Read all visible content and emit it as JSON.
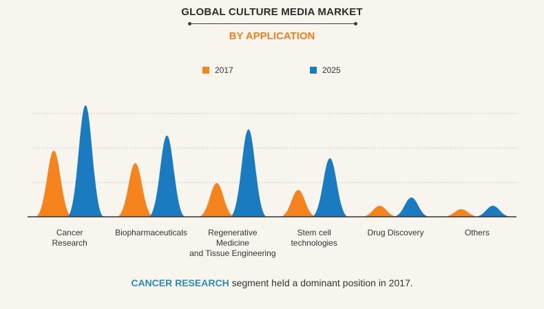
{
  "header": {
    "title": "GLOBAL CULTURE MEDIA MARKET",
    "subtitle": "BY APPLICATION"
  },
  "footer": {
    "highlight": "CANCER RESEARCH",
    "text": " segment held a dominant position in 2017."
  },
  "colors": {
    "s2017": "#f5841f",
    "s2025": "#1a7bc0",
    "grid": "#c9c9c9",
    "axis": "#333333"
  },
  "chart_data": {
    "type": "area",
    "categories": [
      [
        "Cancer",
        "Research"
      ],
      [
        "Biopharmaceuticals"
      ],
      [
        "Regenerative",
        "Medicine",
        "and Tissue Engineering"
      ],
      [
        "Stem cell",
        "technologies"
      ],
      [
        "Drug Discovery"
      ],
      [
        "Others"
      ]
    ],
    "series": [
      {
        "name": "2017",
        "values": [
          96,
          78,
          49,
          39,
          16,
          11
        ]
      },
      {
        "name": "2025",
        "values": [
          162,
          118,
          127,
          85,
          28,
          16
        ]
      }
    ],
    "ylim": [
      0,
      170
    ],
    "grid": true,
    "legend": "top-center"
  }
}
